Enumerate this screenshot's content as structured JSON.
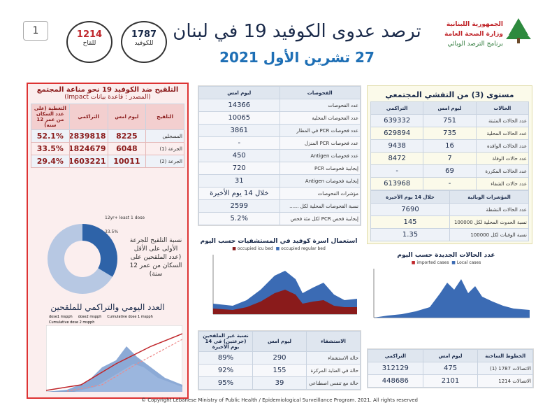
{
  "header": {
    "page_number": "1",
    "title": "ترصد عدوى الكوفيد 19 في لبنان",
    "date": "27 تشرين الأول 2021",
    "ministry": [
      "الجمهورية اللبنانية",
      "وزارة الصحة العامة",
      "برنامج الترصد الوبائي"
    ],
    "hotline_covid": {
      "number": "1787",
      "label": "للكوفيد"
    },
    "hotline_vaccine": {
      "number": "1214",
      "label": "للقاح"
    }
  },
  "vaccination": {
    "title": "التلقيح ضد الكوفيد 19  نحو مناعة المجتمع",
    "subtitle": "(المصدر : قاعدة بيانات Impact)",
    "header": [
      "التلقيح",
      "ليوم امس",
      "التراكمي",
      "التغطية (على عدد السكان من عمر 12 سنة)"
    ],
    "rows": [
      [
        "المسجلين",
        8225,
        2839818,
        "52.1%"
      ],
      [
        "الجرعة (1)",
        6048,
        1824679,
        "33.5%"
      ],
      [
        "الجرعة (2)",
        10011,
        1603221,
        "29.4%"
      ]
    ],
    "donut_labels": [
      "12yr+ least 1 dose",
      "33.5%"
    ],
    "donut_caption": "نسبة التلقيح للجرعة الأولى على الأقل (عدد الملقحين على السكان من عمر 12 سنة)",
    "chart_title": "العدد اليومي والتراكمي للملقحين",
    "chart_legend": [
      "dose1 mspph",
      "dose2 mspph",
      "Cumulative dose 1 mspph",
      "Cumulative dose 2 mspph"
    ]
  },
  "tests": {
    "header": [
      "الفحوصات",
      "ليوم امس"
    ],
    "rows": [
      [
        "عدد الفحوصات",
        14366
      ],
      [
        "عدد الفحوصات المحلية",
        10065
      ],
      [
        "عدد فحوصات PCR في المطار",
        3861
      ],
      [
        "عدد فحوصات PCR المنزل",
        "-"
      ],
      [
        "عدد فحوصات Antigen",
        450
      ],
      [
        "إيجابية فحوصات PCR",
        720
      ],
      [
        "إيجابية فحوصات Antigen",
        31
      ],
      [
        "مؤشرات الفحوصات",
        "خلال 14 يوم الأخيرة"
      ],
      [
        "نسبة الفحوصات المحلية لكل ......",
        2599
      ],
      [
        "إيجابية فحص PCR لكل مئة فحص",
        "5.2%"
      ]
    ]
  },
  "community": {
    "title": "مستوى (3) من التفشي المجتمعي",
    "header": [
      "الحالات",
      "ليوم امس",
      "التراكمي"
    ],
    "rows": [
      [
        "عدد الحالات المثبتة",
        751,
        639332
      ],
      [
        "عدد الحالات المحلية",
        735,
        629894
      ],
      [
        "عدد الحالات الوافدة",
        16,
        9438
      ],
      [
        "عدد حالات الوفاة",
        7,
        8472
      ],
      [
        "عدد الحالات المكررة",
        69,
        "-"
      ],
      [
        "عدد حالات الشفاء",
        "-",
        613968
      ]
    ],
    "indicators_header": [
      "المؤشرات الوبائية",
      "خلال 14 يوم الأخيرة"
    ],
    "indicators": [
      [
        "عدد الحالات النشطة",
        7690
      ],
      [
        "نسبة الحدوث المحلية لكل 100000",
        145
      ],
      [
        "نسبة الوفيات لكل 100000",
        1.35
      ]
    ]
  },
  "beds_chart": {
    "title": "استعمال اسرة كوفيد في المستشفيات حسب اليوم",
    "legend": [
      "occupied icu bed",
      "occupied regular bed"
    ]
  },
  "cases_chart": {
    "title": "عدد الحالات الجديدة حسب اليوم",
    "legend": [
      "imported cases",
      "Local cases"
    ]
  },
  "hospital": {
    "header": [
      "الاستشفاء",
      "ليوم امس",
      "نسبة غير الملقحين (جرعتين) في 14 يوم الأخيرة"
    ],
    "rows": [
      [
        "حالة الاستشفاء",
        290,
        "89%"
      ],
      [
        "حالة في العناية المركزة",
        155,
        "92%"
      ],
      [
        "حالة مع تنفس اصطناعي",
        39,
        "95%"
      ]
    ]
  },
  "hotlines": {
    "header": [
      "الخطوط الساخنة",
      "ليوم امس",
      "التراكمي"
    ],
    "rows": [
      [
        "الاتصالات 1787 (1)",
        475,
        312129
      ],
      [
        "الاتصالات 1214",
        2101,
        448686
      ]
    ]
  },
  "footer": "© Copyright Lebanese Ministry of Public Health / Epidemiological Surveillance Program. 2021. All rights reserved"
}
